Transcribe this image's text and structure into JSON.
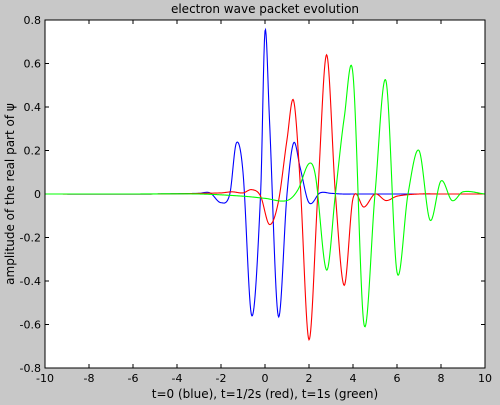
{
  "chart_data": {
    "type": "line",
    "title": "electron wave packet evolution",
    "xlabel": "t=0 (blue), t=1/2s (red), t=1s (green)",
    "ylabel": "amplitude of the real part of ψ",
    "xlim": [
      -10,
      10
    ],
    "ylim": [
      -0.8,
      0.8
    ],
    "xticks": [
      -10,
      -8,
      -6,
      -4,
      -2,
      0,
      2,
      4,
      6,
      8,
      10
    ],
    "yticks": [
      -0.8,
      -0.6,
      -0.4,
      -0.2,
      0,
      0.2,
      0.4,
      0.6,
      0.8
    ],
    "grid": false,
    "legend": "none",
    "series": [
      {
        "color": "#0000ff",
        "x": [
          -10,
          -5,
          -3,
          -2.5,
          -2.0,
          -1.6,
          -1.3,
          -1.0,
          -0.6,
          -0.2,
          0.0,
          0.2,
          0.6,
          1.0,
          1.3,
          1.6,
          2.0,
          2.5,
          3.0,
          3.5,
          4,
          6,
          8,
          10
        ],
        "y": [
          0,
          0,
          0.003,
          0.005,
          -0.04,
          0.0,
          0.235,
          0.1,
          -0.56,
          0.0,
          0.75,
          0.35,
          -0.56,
          0.0,
          0.235,
          0.12,
          -0.04,
          0.005,
          0.003,
          0.0,
          0,
          0,
          0,
          0
        ]
      },
      {
        "color": "#ff0000",
        "x": [
          -10,
          -5,
          -2,
          -1.5,
          -1.0,
          -0.6,
          -0.2,
          0.2,
          0.6,
          1.0,
          1.3,
          1.6,
          2.0,
          2.4,
          2.8,
          3.2,
          3.6,
          4.0,
          4.5,
          5.0,
          5.5,
          6.0,
          7.0,
          8.0,
          10
        ],
        "y": [
          0,
          0,
          0.005,
          0.01,
          0.005,
          0.02,
          -0.01,
          -0.14,
          -0.04,
          0.25,
          0.43,
          0.05,
          -0.67,
          0.0,
          0.64,
          0.0,
          -0.42,
          -0.02,
          -0.06,
          0.0,
          -0.03,
          -0.01,
          0.0,
          0.0,
          0
        ]
      },
      {
        "color": "#00ff00",
        "x": [
          -10,
          -6,
          -3,
          -1.0,
          0.0,
          1.0,
          1.5,
          2.0,
          2.3,
          2.8,
          3.2,
          3.6,
          4.0,
          4.5,
          5.0,
          5.5,
          6.0,
          6.5,
          7.0,
          7.5,
          8.0,
          8.5,
          9.0,
          10
        ],
        "y": [
          0,
          0,
          0,
          -0.01,
          -0.02,
          -0.03,
          0.02,
          0.14,
          0.08,
          -0.35,
          0.0,
          0.35,
          0.55,
          -0.6,
          0.0,
          0.52,
          -0.36,
          0.0,
          0.2,
          -0.12,
          0.06,
          -0.03,
          0.01,
          0
        ]
      }
    ]
  }
}
